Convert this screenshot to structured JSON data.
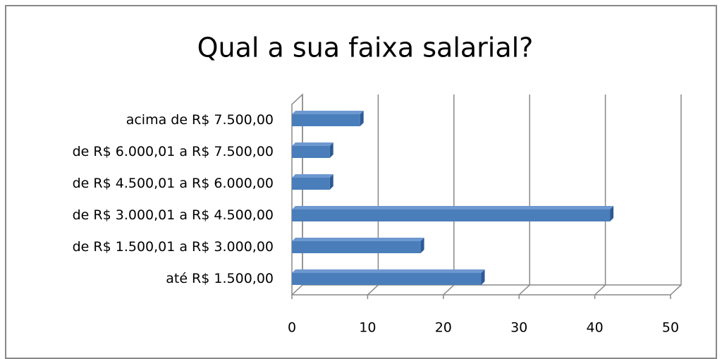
{
  "chart_data": {
    "type": "bar",
    "orientation": "horizontal",
    "title": "Qual a sua faixa salarial?",
    "categories": [
      "acima de R$ 7.500,00",
      "de R$ 6.000,01 a R$ 7.500,00",
      "de R$ 4.500,01 a R$ 6.000,00",
      "de R$ 3.000,01 a R$ 4.500,00",
      "de R$ 1.500,01 a R$ 3.000,00",
      "até R$ 1.500,00"
    ],
    "values": [
      9,
      5,
      5,
      42,
      17,
      25
    ],
    "color": "#4a7ebb",
    "xlim": [
      0,
      50
    ],
    "xticks": [
      0,
      10,
      20,
      30,
      40,
      50
    ],
    "grid": true
  }
}
